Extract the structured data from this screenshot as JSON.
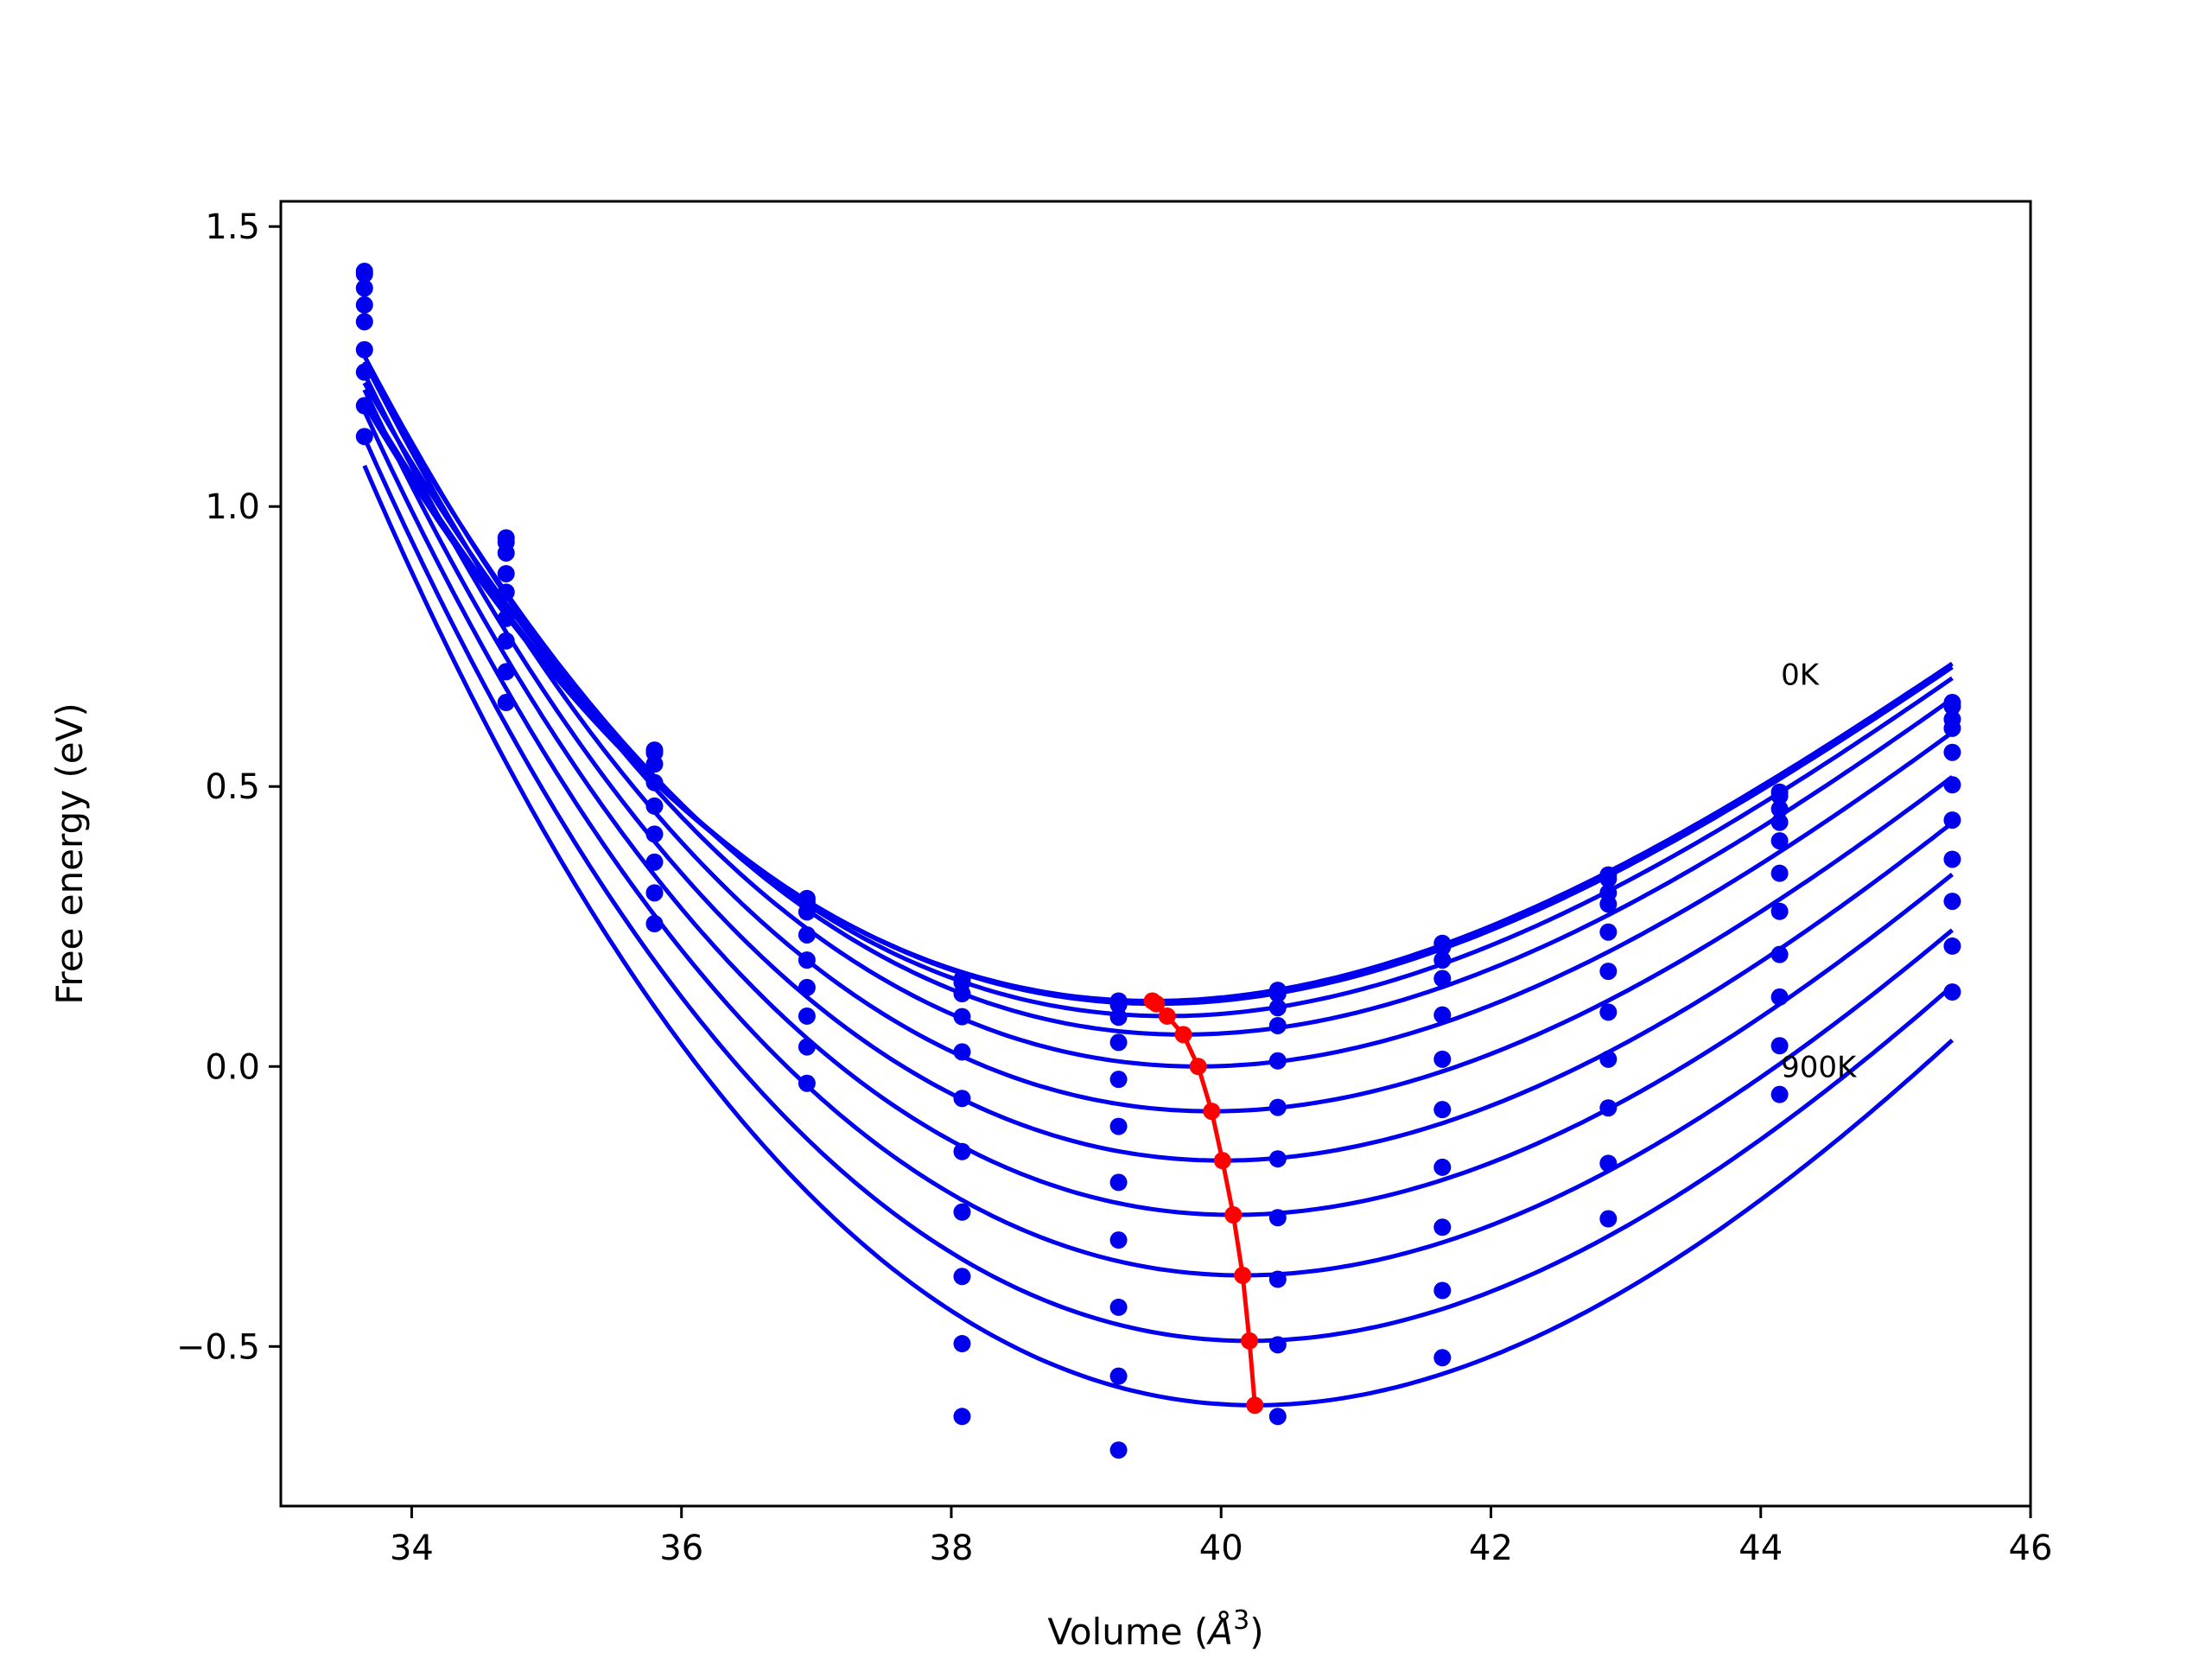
{
  "chart_data": {
    "type": "scatter",
    "title": "",
    "xlabel": "Volume (Å³)",
    "xlabel_main": "Volume (",
    "xlabel_sym": "Å",
    "xlabel_sup": "3",
    "xlabel_end": ")",
    "ylabel": "Free energy (eV)",
    "xlim": [
      33.03,
      46.0
    ],
    "ylim": [
      -0.785,
      1.545
    ],
    "xticks": [
      34,
      36,
      38,
      40,
      42,
      44,
      46
    ],
    "yticks": [
      -0.5,
      0.0,
      0.5,
      1.0,
      1.5
    ],
    "xtick_labels": [
      "34",
      "36",
      "38",
      "40",
      "42",
      "44",
      "46"
    ],
    "ytick_labels": [
      "−0.5",
      "0.0",
      "0.5",
      "1.0",
      "1.5"
    ],
    "grid": false,
    "legend": "none",
    "colors": {
      "curves": "#0000ee",
      "points": "#0000ee",
      "minimum_path": "#ff0000"
    },
    "annotations": [
      {
        "text": "0K",
        "x": 44.15,
        "y": 0.7
      },
      {
        "text": "900K",
        "x": 44.15,
        "y": 0.0
      }
    ],
    "volumes": [
      33.65,
      34.7,
      35.8,
      36.93,
      38.08,
      39.24,
      40.42,
      41.64,
      42.87,
      44.14,
      45.42
    ],
    "series": [
      {
        "temperature_index": 0,
        "v0": 39.49,
        "f0": 0.117,
        "k": 0.02425,
        "c": 0.0012,
        "values": [
          1.42,
          0.944,
          0.565,
          0.3,
          0.156,
          0.117,
          0.136,
          0.22,
          0.342,
          0.49,
          0.65
        ]
      },
      {
        "temperature_index": 1,
        "v0": 39.52,
        "f0": 0.112,
        "k": 0.02435,
        "c": 0.0012,
        "values": [
          1.415,
          0.936,
          0.56,
          0.294,
          0.15,
          0.11,
          0.13,
          0.213,
          0.335,
          0.483,
          0.643
        ]
      },
      {
        "temperature_index": 2,
        "v0": 39.6,
        "f0": 0.09,
        "k": 0.0248,
        "c": 0.0012,
        "values": [
          1.39,
          0.917,
          0.54,
          0.276,
          0.13,
          0.088,
          0.105,
          0.19,
          0.31,
          0.46,
          0.62
        ]
      },
      {
        "temperature_index": 3,
        "v0": 39.72,
        "f0": 0.057,
        "k": 0.0253,
        "c": 0.0012,
        "values": [
          1.36,
          0.88,
          0.507,
          0.235,
          0.089,
          0.043,
          0.073,
          0.157,
          0.29,
          0.436,
          0.604
        ]
      },
      {
        "temperature_index": 4,
        "v0": 39.83,
        "f0": 0.0,
        "k": 0.0258,
        "c": 0.0012,
        "values": [
          1.33,
          0.847,
          0.465,
          0.19,
          0.026,
          -0.023,
          0.01,
          0.092,
          0.24,
          0.403,
          0.561
        ]
      },
      {
        "temperature_index": 5,
        "v0": 39.93,
        "f0": -0.08,
        "k": 0.0264,
        "c": 0.0012,
        "values": [
          1.28,
          0.8,
          0.415,
          0.141,
          -0.057,
          -0.107,
          -0.073,
          0.013,
          0.17,
          0.345,
          0.503
        ]
      },
      {
        "temperature_index": 6,
        "v0": 40.01,
        "f0": -0.168,
        "k": 0.0271,
        "c": 0.0012,
        "values": [
          1.24,
          0.76,
          0.365,
          0.09,
          -0.152,
          -0.207,
          -0.165,
          -0.077,
          0.097,
          0.277,
          0.44
        ]
      },
      {
        "temperature_index": 7,
        "v0": 40.09,
        "f0": -0.265,
        "k": 0.0278,
        "c": 0.0012,
        "values": [
          1.18,
          0.705,
          0.31,
          0.035,
          -0.26,
          -0.31,
          -0.27,
          -0.18,
          0.013,
          0.2,
          0.37
        ]
      },
      {
        "temperature_index": 8,
        "v0": 40.16,
        "f0": -0.373,
        "k": 0.0286,
        "c": 0.0012,
        "values": [
          1.125,
          0.65,
          0.255,
          -0.03,
          -0.375,
          -0.43,
          -0.38,
          -0.287,
          -0.074,
          0.124,
          0.295
        ]
      },
      {
        "temperature_index": 9,
        "v0": 40.21,
        "f0": -0.49,
        "k": 0.0296,
        "c": 0.0012,
        "values": [
          null,
          null,
          null,
          null,
          -0.495,
          -0.553,
          -0.497,
          -0.4,
          -0.173,
          0.037,
          0.215
        ]
      },
      {
        "temperature_index": 10,
        "v0": 40.25,
        "f0": -0.605,
        "k": 0.0306,
        "c": 0.0012,
        "values": [
          null,
          null,
          null,
          null,
          -0.625,
          -0.685,
          -0.625,
          -0.52,
          -0.272,
          -0.05,
          0.133
        ]
      }
    ],
    "minimum_path": {
      "x": [
        39.49,
        39.52,
        39.6,
        39.72,
        39.83,
        39.93,
        40.01,
        40.09,
        40.16,
        40.21,
        40.25
      ],
      "y": [
        0.117,
        0.112,
        0.09,
        0.057,
        0.0,
        -0.08,
        -0.168,
        -0.265,
        -0.373,
        -0.49,
        -0.605
      ]
    }
  }
}
